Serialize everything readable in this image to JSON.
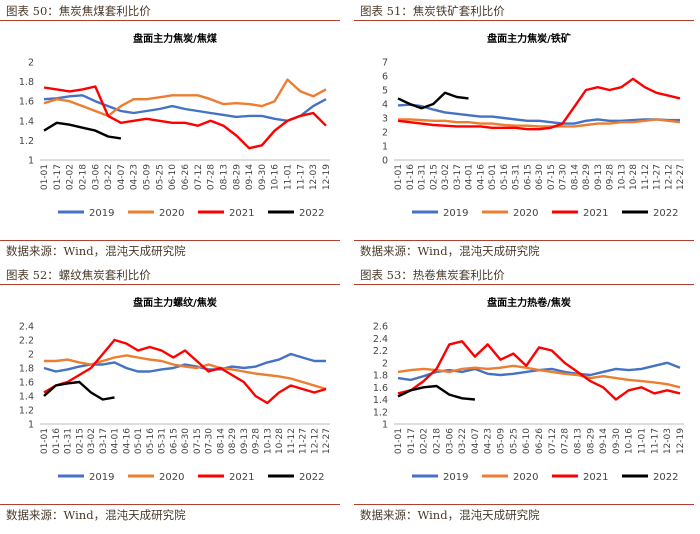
{
  "legend_colors": {
    "2019": "#4472C4",
    "2020": "#ED7D31",
    "2021": "#FF0000",
    "2022": "#000000"
  },
  "chart_data": [
    {
      "type": "line",
      "figure_label": "图表 50：焦炭焦煤套利比价",
      "title": "盘面主力焦炭/焦煤",
      "source": "数据来源：Wind，混沌天成研究院",
      "y_ticks": [
        "2",
        "1.8",
        "1.6",
        "1.4",
        "1.2",
        "1"
      ],
      "ylim": [
        1,
        2
      ],
      "x_tick_labels": [
        "01-01",
        "01-17",
        "02-02",
        "02-18",
        "03-06",
        "03-22",
        "04-07",
        "04-23",
        "05-09",
        "05-25",
        "06-10",
        "06-26",
        "07-12",
        "07-28",
        "08-13",
        "08-29",
        "09-14",
        "09-30",
        "10-16",
        "11-01",
        "11-17",
        "12-03",
        "12-19"
      ],
      "series": [
        {
          "name": "2019",
          "values": [
            1.62,
            1.63,
            1.65,
            1.66,
            1.6,
            1.55,
            1.5,
            1.48,
            1.5,
            1.52,
            1.55,
            1.52,
            1.5,
            1.48,
            1.46,
            1.44,
            1.45,
            1.45,
            1.42,
            1.4,
            1.45,
            1.55,
            1.62
          ]
        },
        {
          "name": "2020",
          "values": [
            1.58,
            1.62,
            1.6,
            1.55,
            1.5,
            1.45,
            1.55,
            1.62,
            1.62,
            1.64,
            1.66,
            1.66,
            1.66,
            1.62,
            1.57,
            1.58,
            1.57,
            1.55,
            1.6,
            1.82,
            1.7,
            1.65,
            1.72
          ]
        },
        {
          "name": "2021",
          "values": [
            1.74,
            1.72,
            1.7,
            1.72,
            1.75,
            1.45,
            1.38,
            1.4,
            1.42,
            1.4,
            1.38,
            1.38,
            1.35,
            1.4,
            1.35,
            1.25,
            1.12,
            1.15,
            1.3,
            1.4,
            1.45,
            1.48,
            1.35
          ]
        },
        {
          "name": "2022",
          "values": [
            1.3,
            1.38,
            1.36,
            1.33,
            1.3,
            1.24,
            1.22
          ]
        }
      ]
    },
    {
      "type": "line",
      "figure_label": "图表 51：焦炭铁矿套利比价",
      "title": "盘面主力焦炭/铁矿",
      "source": "数据来源：Wind，混沌天成研究院",
      "y_ticks": [
        "7",
        "6",
        "5",
        "4",
        "3",
        "2",
        "1",
        "0"
      ],
      "ylim": [
        0,
        7
      ],
      "x_tick_labels": [
        "01-01",
        "01-16",
        "01-31",
        "02-15",
        "03-02",
        "03-17",
        "04-01",
        "04-16",
        "05-01",
        "05-16",
        "05-31",
        "06-15",
        "06-30",
        "07-15",
        "07-30",
        "08-14",
        "08-29",
        "09-13",
        "09-28",
        "10-13",
        "10-28",
        "11-12",
        "11-27",
        "12-12",
        "12-27"
      ],
      "series": [
        {
          "name": "2019",
          "values": [
            3.9,
            3.95,
            3.85,
            3.6,
            3.4,
            3.3,
            3.2,
            3.1,
            3.1,
            3.0,
            2.9,
            2.8,
            2.8,
            2.7,
            2.6,
            2.6,
            2.8,
            2.9,
            2.8,
            2.8,
            2.85,
            2.9,
            2.9,
            2.85,
            2.85
          ]
        },
        {
          "name": "2020",
          "values": [
            2.9,
            2.9,
            2.85,
            2.8,
            2.8,
            2.7,
            2.7,
            2.6,
            2.6,
            2.5,
            2.45,
            2.45,
            2.4,
            2.4,
            2.4,
            2.4,
            2.5,
            2.6,
            2.6,
            2.7,
            2.7,
            2.8,
            2.9,
            2.8,
            2.7
          ]
        },
        {
          "name": "2021",
          "values": [
            2.8,
            2.7,
            2.6,
            2.5,
            2.45,
            2.4,
            2.4,
            2.4,
            2.3,
            2.3,
            2.3,
            2.2,
            2.2,
            2.3,
            2.6,
            3.8,
            5.0,
            5.2,
            5.0,
            5.2,
            5.8,
            5.2,
            4.8,
            4.6,
            4.4
          ]
        },
        {
          "name": "2022",
          "values": [
            4.4,
            4.0,
            3.7,
            4.0,
            4.8,
            4.5,
            4.4
          ]
        }
      ]
    },
    {
      "type": "line",
      "figure_label": "图表 52：螺纹焦炭套利比价",
      "title": "盘面主力螺纹/焦炭",
      "source": "数据来源：Wind，混沌天成研究院",
      "y_ticks": [
        "2.4",
        "2.2",
        "2",
        "1.8",
        "1.6",
        "1.4",
        "1.2",
        "1"
      ],
      "ylim": [
        1,
        2.4
      ],
      "x_tick_labels": [
        "01-01",
        "01-16",
        "01-31",
        "02-15",
        "03-02",
        "03-17",
        "04-01",
        "04-16",
        "05-01",
        "05-16",
        "05-31",
        "06-15",
        "06-30",
        "07-15",
        "07-30",
        "08-14",
        "08-29",
        "09-13",
        "09-28",
        "10-13",
        "10-28",
        "11-12",
        "11-27",
        "12-12",
        "12-27"
      ],
      "series": [
        {
          "name": "2019",
          "values": [
            1.8,
            1.75,
            1.78,
            1.82,
            1.85,
            1.85,
            1.88,
            1.8,
            1.75,
            1.75,
            1.78,
            1.8,
            1.85,
            1.82,
            1.78,
            1.78,
            1.82,
            1.8,
            1.82,
            1.88,
            1.92,
            2.0,
            1.95,
            1.9,
            1.9
          ]
        },
        {
          "name": "2020",
          "values": [
            1.9,
            1.9,
            1.92,
            1.88,
            1.85,
            1.9,
            1.95,
            1.98,
            1.95,
            1.92,
            1.9,
            1.85,
            1.82,
            1.8,
            1.85,
            1.8,
            1.78,
            1.75,
            1.72,
            1.7,
            1.68,
            1.65,
            1.6,
            1.55,
            1.5
          ]
        },
        {
          "name": "2021",
          "values": [
            1.45,
            1.55,
            1.6,
            1.7,
            1.8,
            2.0,
            2.2,
            2.15,
            2.05,
            2.1,
            2.05,
            1.95,
            2.05,
            1.9,
            1.75,
            1.8,
            1.7,
            1.6,
            1.4,
            1.3,
            1.45,
            1.55,
            1.5,
            1.45,
            1.5
          ]
        },
        {
          "name": "2022",
          "values": [
            1.4,
            1.55,
            1.58,
            1.6,
            1.45,
            1.35,
            1.38
          ]
        }
      ]
    },
    {
      "type": "line",
      "figure_label": "图表 53：热卷焦炭套利比价",
      "title": "盘面主力热卷/焦炭",
      "source": "数据来源：Wind，混沌天成研究院",
      "y_ticks": [
        "2.6",
        "2.4",
        "2.2",
        "2",
        "1.8",
        "1.6",
        "1.4",
        "1.2",
        "1"
      ],
      "ylim": [
        1,
        2.6
      ],
      "x_tick_labels": [
        "01-01",
        "01-17",
        "02-02",
        "02-18",
        "03-06",
        "03-22",
        "04-07",
        "04-23",
        "05-09",
        "05-25",
        "06-10",
        "06-26",
        "07-12",
        "07-28",
        "08-13",
        "08-29",
        "09-14",
        "09-30",
        "10-16",
        "11-01",
        "11-17",
        "12-03",
        "12-19"
      ],
      "series": [
        {
          "name": "2019",
          "values": [
            1.75,
            1.72,
            1.78,
            1.85,
            1.88,
            1.85,
            1.9,
            1.82,
            1.8,
            1.82,
            1.85,
            1.88,
            1.9,
            1.85,
            1.82,
            1.8,
            1.85,
            1.9,
            1.88,
            1.9,
            1.95,
            2.0,
            1.92
          ]
        },
        {
          "name": "2020",
          "values": [
            1.85,
            1.88,
            1.9,
            1.88,
            1.85,
            1.9,
            1.92,
            1.9,
            1.92,
            1.95,
            1.92,
            1.88,
            1.85,
            1.82,
            1.8,
            1.75,
            1.78,
            1.75,
            1.72,
            1.7,
            1.68,
            1.65,
            1.6
          ]
        },
        {
          "name": "2021",
          "values": [
            1.5,
            1.55,
            1.7,
            1.9,
            2.3,
            2.35,
            2.1,
            2.3,
            2.05,
            2.15,
            1.95,
            2.25,
            2.2,
            2.0,
            1.85,
            1.7,
            1.6,
            1.4,
            1.55,
            1.6,
            1.5,
            1.55,
            1.5
          ]
        },
        {
          "name": "2022",
          "values": [
            1.45,
            1.55,
            1.6,
            1.62,
            1.48,
            1.42,
            1.4
          ]
        }
      ]
    }
  ]
}
